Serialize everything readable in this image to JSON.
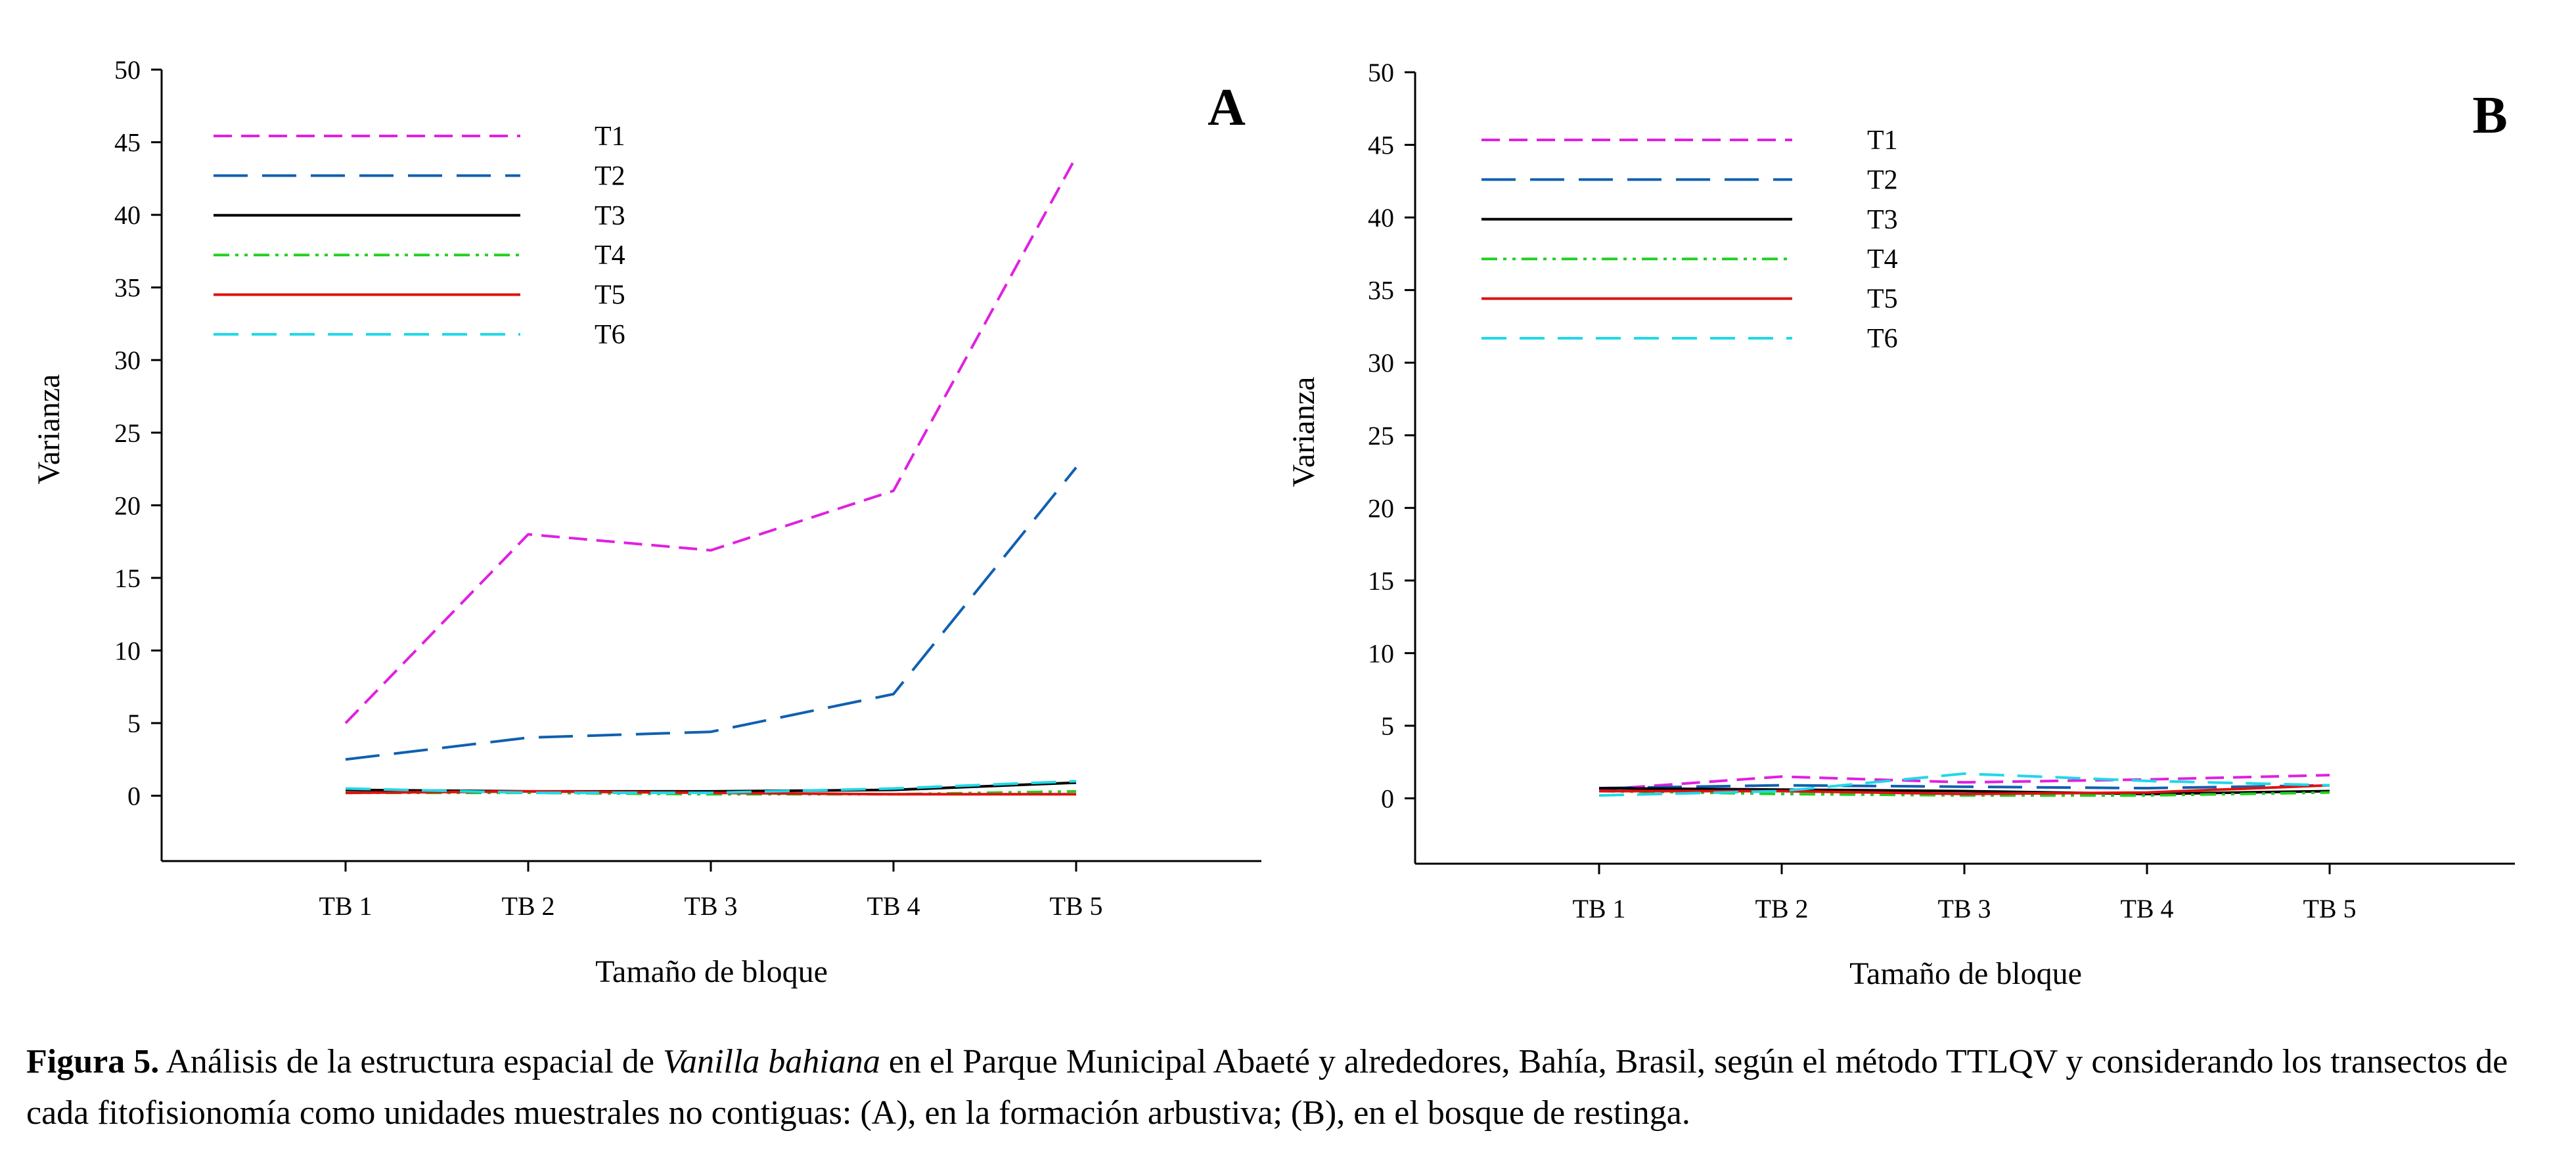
{
  "figure": {
    "caption": {
      "label": "Figura 5.",
      "text_before": " Análisis de la estructura espacial de ",
      "species": "Vanilla bahiana",
      "text_after": " en el Parque Municipal Abaeté y alrededores, Bahía, Brasil, según el método TTLQV y considerando los transectos de cada fitofisionomía como unidades muestrales no contiguas: (A), en la formación arbustiva; (B), en el bosque de restinga."
    }
  },
  "chart_data": [
    {
      "type": "line",
      "panel": "A",
      "xlabel": "Tamaño de bloque",
      "ylabel": "Varianza",
      "categories": [
        "TB 1",
        "TB 2",
        "TB 3",
        "TB 4",
        "TB 5"
      ],
      "ylim": [
        -4.5,
        50
      ],
      "yticks": [
        0,
        5,
        10,
        15,
        20,
        25,
        30,
        35,
        40,
        45,
        50
      ],
      "grid": false,
      "legend_position": "top-left",
      "series": [
        {
          "name": "T1",
          "color": "#e020e0",
          "dash": "short-dash",
          "values": [
            5.0,
            18.0,
            16.9,
            21.0,
            44.0
          ]
        },
        {
          "name": "T2",
          "color": "#1060b0",
          "dash": "long-dash",
          "values": [
            2.5,
            4.0,
            4.4,
            7.0,
            22.6
          ]
        },
        {
          "name": "T3",
          "color": "#000000",
          "dash": "solid",
          "values": [
            0.4,
            0.3,
            0.3,
            0.4,
            0.9
          ]
        },
        {
          "name": "T4",
          "color": "#20d020",
          "dash": "dash-dot-dot",
          "values": [
            0.2,
            0.2,
            0.1,
            0.1,
            0.3
          ]
        },
        {
          "name": "T5",
          "color": "#e01010",
          "dash": "solid",
          "values": [
            0.2,
            0.3,
            0.2,
            0.1,
            0.1
          ]
        },
        {
          "name": "T6",
          "color": "#20d8e8",
          "dash": "medium-dash",
          "values": [
            0.5,
            0.2,
            0.2,
            0.5,
            1.0
          ]
        }
      ]
    },
    {
      "type": "line",
      "panel": "B",
      "xlabel": "Tamaño de bloque",
      "ylabel": "Varianza",
      "categories": [
        "TB 1",
        "TB 2",
        "TB 3",
        "TB 4",
        "TB 5"
      ],
      "ylim": [
        -4.5,
        50
      ],
      "yticks": [
        0,
        5,
        10,
        15,
        20,
        25,
        30,
        35,
        40,
        45,
        50
      ],
      "grid": false,
      "legend_position": "top-left",
      "series": [
        {
          "name": "T1",
          "color": "#e020e0",
          "dash": "short-dash",
          "values": [
            0.6,
            1.5,
            1.1,
            1.3,
            1.6
          ]
        },
        {
          "name": "T2",
          "color": "#1060b0",
          "dash": "long-dash",
          "values": [
            0.7,
            0.9,
            0.8,
            0.7,
            0.9
          ]
        },
        {
          "name": "T3",
          "color": "#000000",
          "dash": "solid",
          "values": [
            0.7,
            0.6,
            0.5,
            0.3,
            0.5
          ]
        },
        {
          "name": "T4",
          "color": "#20d020",
          "dash": "dash-dot-dot",
          "values": [
            0.5,
            0.3,
            0.2,
            0.2,
            0.4
          ]
        },
        {
          "name": "T5",
          "color": "#e01010",
          "dash": "solid",
          "values": [
            0.5,
            0.5,
            0.3,
            0.4,
            0.9
          ]
        },
        {
          "name": "T6",
          "color": "#20d8e8",
          "dash": "medium-dash",
          "values": [
            0.2,
            0.5,
            1.7,
            1.2,
            0.9
          ]
        }
      ]
    }
  ]
}
